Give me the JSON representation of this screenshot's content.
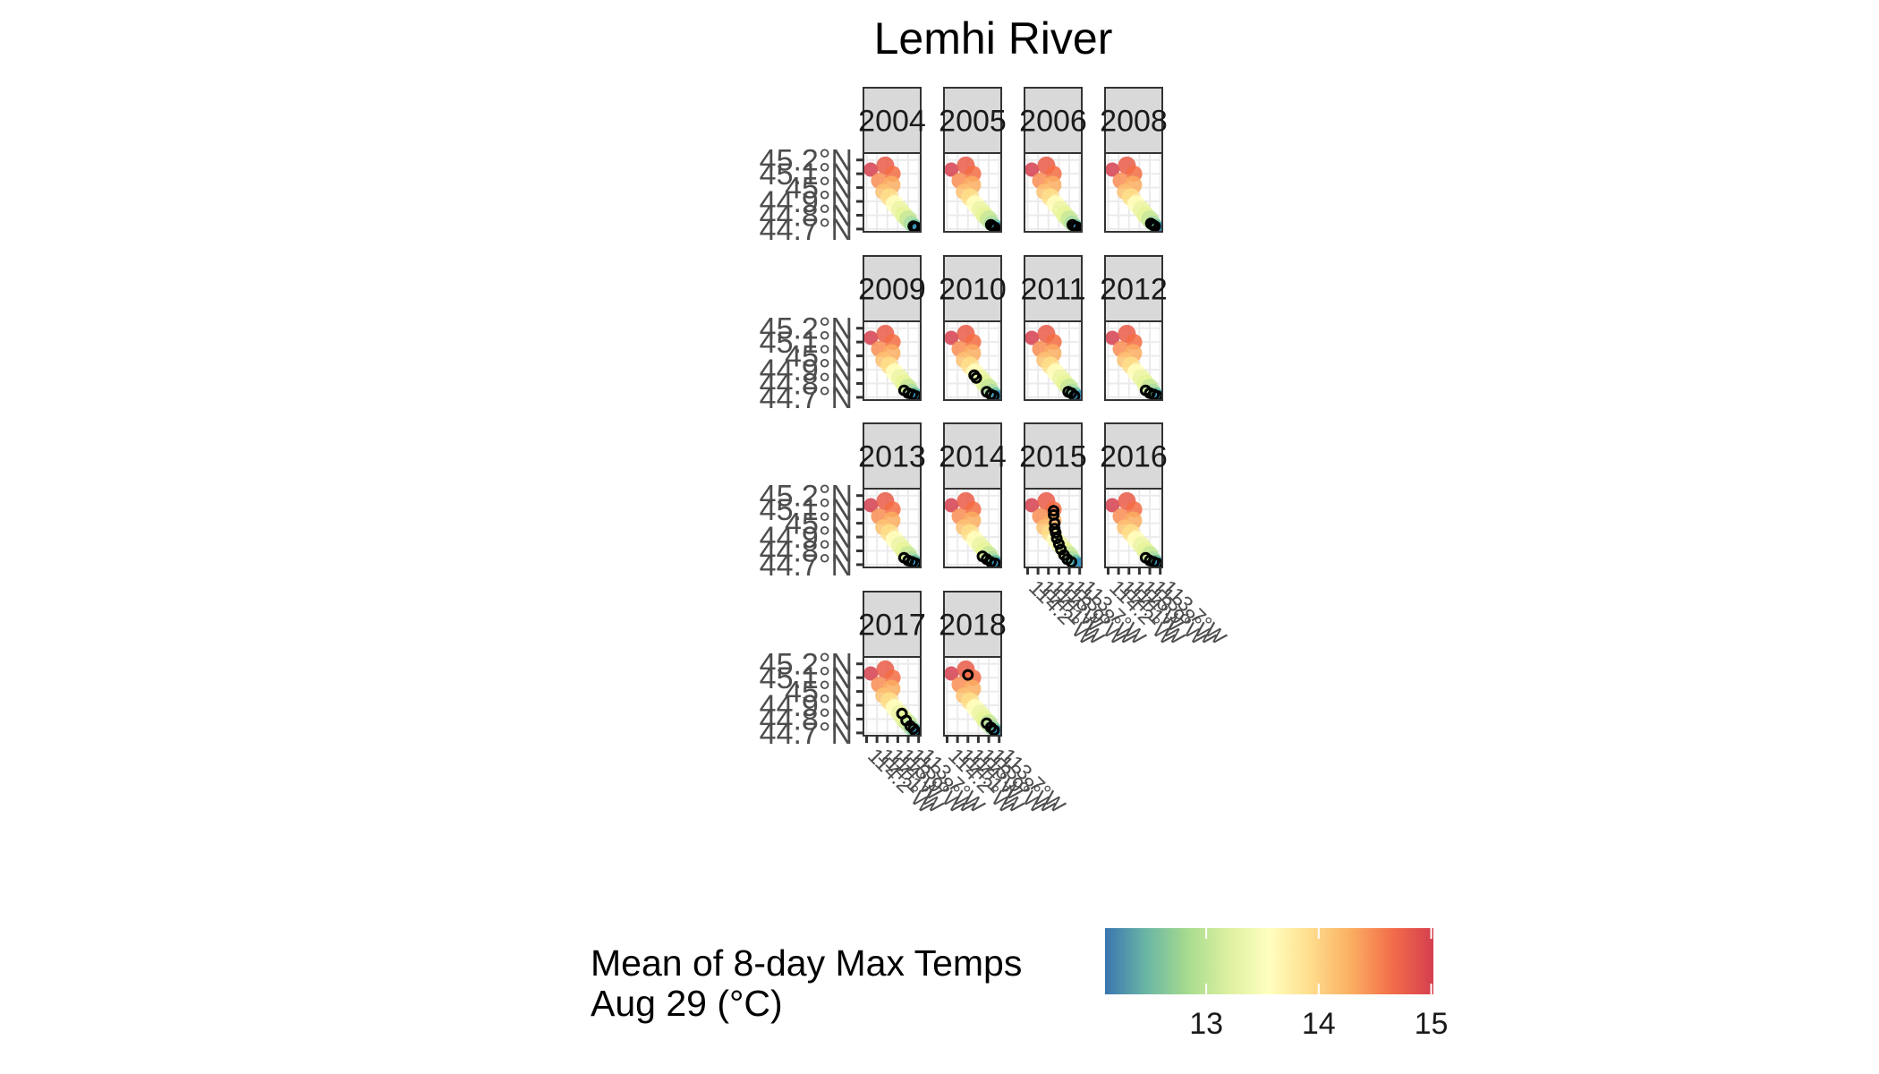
{
  "chart_data": {
    "type": "scatter",
    "title": "Lemhi River",
    "facets": [
      "2004",
      "2005",
      "2006",
      "2008",
      "2009",
      "2010",
      "2011",
      "2012",
      "2013",
      "2014",
      "2015",
      "2016",
      "2017",
      "2018"
    ],
    "facet_rows": [
      [
        "2004",
        "2005",
        "2006",
        "2008"
      ],
      [
        "2009",
        "2010",
        "2011",
        "2012"
      ],
      [
        "2013",
        "2014",
        "2015",
        "2016"
      ],
      [
        "2017",
        "2018"
      ]
    ],
    "y_ticks": [
      "45.2°N",
      "45.1°N",
      "45°N",
      "44.9°N",
      "44.8°N",
      "44.7°N"
    ],
    "y_tick_values": [
      45.2,
      45.1,
      45.0,
      44.9,
      44.8,
      44.7
    ],
    "ylim": [
      44.68,
      45.25
    ],
    "x_ticks": [
      "114.2°W",
      "114.1°W",
      "114°W",
      "113.9°W",
      "113.8°W",
      "113.7°W"
    ],
    "legend": {
      "title_line1": "Mean of 8-day Max Temps",
      "title_line2": "Aug 29 (°C)",
      "ticks": [
        "13",
        "14",
        "15"
      ],
      "tick_values": [
        13,
        14,
        15
      ],
      "range": [
        12.1,
        15.02
      ],
      "colors": [
        "#3a75b0",
        "#6ab6a5",
        "#a6db8e",
        "#ddf0a0",
        "#ffffbf",
        "#fedd8d",
        "#fbae61",
        "#f26d4a",
        "#d53e4f"
      ],
      "placement": "bottom"
    },
    "colors": {
      "strip_fill": "#d9d9d9",
      "panel_border": "#333333",
      "grid": "#ebebeb",
      "observation_stroke": "#000000"
    },
    "observations": {
      "2004": [
        [
          -113.75,
          44.72
        ],
        [
          -113.73,
          44.715
        ]
      ],
      "2005": [
        [
          -113.78,
          44.73
        ],
        [
          -113.76,
          44.72
        ],
        [
          -113.74,
          44.71
        ]
      ],
      "2006": [
        [
          -113.77,
          44.73
        ],
        [
          -113.75,
          44.72
        ],
        [
          -113.73,
          44.715
        ]
      ],
      "2008": [
        [
          -113.79,
          44.74
        ],
        [
          -113.77,
          44.73
        ],
        [
          -113.75,
          44.72
        ]
      ],
      "2009": [
        [
          -113.84,
          44.75
        ],
        [
          -113.8,
          44.73
        ],
        [
          -113.76,
          44.72
        ],
        [
          -113.73,
          44.71
        ]
      ],
      "2010": [
        [
          -113.94,
          44.86
        ],
        [
          -113.92,
          44.84
        ],
        [
          -113.82,
          44.74
        ],
        [
          -113.78,
          44.72
        ],
        [
          -113.75,
          44.71
        ]
      ],
      "2011": [
        [
          -113.81,
          44.74
        ],
        [
          -113.78,
          44.73
        ],
        [
          -113.75,
          44.71
        ]
      ],
      "2012": [
        [
          -113.84,
          44.75
        ],
        [
          -113.8,
          44.73
        ],
        [
          -113.76,
          44.72
        ],
        [
          -113.73,
          44.71
        ]
      ],
      "2013": [
        [
          -113.84,
          44.75
        ],
        [
          -113.8,
          44.73
        ],
        [
          -113.76,
          44.72
        ],
        [
          -113.73,
          44.71
        ]
      ],
      "2014": [
        [
          -113.86,
          44.76
        ],
        [
          -113.82,
          44.74
        ],
        [
          -113.78,
          44.72
        ],
        [
          -113.74,
          44.71
        ]
      ],
      "2015": [
        [
          -113.95,
          45.09
        ],
        [
          -113.95,
          45.06
        ],
        [
          -113.94,
          45.0
        ],
        [
          -113.94,
          44.96
        ],
        [
          -113.93,
          44.93
        ],
        [
          -113.92,
          44.89
        ],
        [
          -113.9,
          44.85
        ],
        [
          -113.88,
          44.81
        ],
        [
          -113.85,
          44.77
        ],
        [
          -113.82,
          44.74
        ],
        [
          -113.78,
          44.72
        ]
      ],
      "2016": [
        [
          -113.84,
          44.75
        ],
        [
          -113.8,
          44.73
        ],
        [
          -113.76,
          44.72
        ],
        [
          -113.73,
          44.71
        ]
      ],
      "2017": [
        [
          -113.86,
          44.84
        ],
        [
          -113.82,
          44.79
        ],
        [
          -113.78,
          44.75
        ],
        [
          -113.75,
          44.73
        ],
        [
          -113.73,
          44.71
        ]
      ],
      "2018": [
        [
          -114.0,
          45.12
        ],
        [
          -113.82,
          44.77
        ],
        [
          -113.78,
          44.74
        ],
        [
          -113.75,
          44.72
        ]
      ]
    }
  }
}
